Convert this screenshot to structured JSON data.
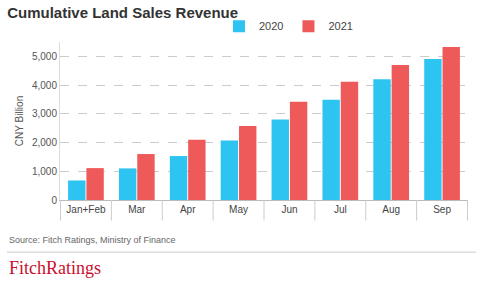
{
  "chart_data": {
    "type": "bar",
    "title": "Cumulative Land Sales Revenue",
    "ylabel": "CNY Billion",
    "categories": [
      "Jan+Feb",
      "Mar",
      "Apr",
      "May",
      "Jun",
      "Jul",
      "Aug",
      "Sep"
    ],
    "series": [
      {
        "name": "2020",
        "color": "#2ec4f1",
        "values": [
          680,
          1100,
          1530,
          2070,
          2800,
          3490,
          4200,
          4910
        ]
      },
      {
        "name": "2021",
        "color": "#ee5a5a",
        "values": [
          1110,
          1600,
          2100,
          2580,
          3420,
          4120,
          4700,
          5330
        ]
      }
    ],
    "ylim": [
      0,
      5500
    ],
    "yticks": [
      0,
      {
        "value": 1000,
        "label": "1,000"
      },
      {
        "value": 2000,
        "label": "2,000"
      },
      {
        "value": 3000,
        "label": "3,000"
      },
      {
        "value": 4000,
        "label": "4,000"
      },
      {
        "value": 5000,
        "label": "5,000"
      }
    ],
    "grid": true,
    "legend": "top",
    "source": "Source: Fitch Ratings, Ministry of Finance",
    "brand": "FitchRatings"
  }
}
